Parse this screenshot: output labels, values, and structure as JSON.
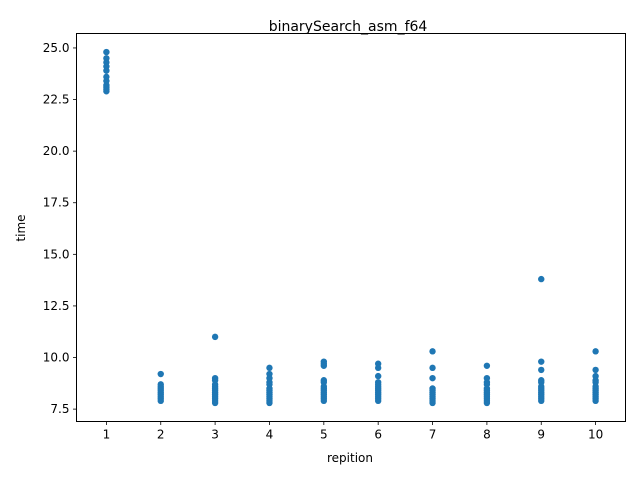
{
  "chart_data": {
    "type": "scatter",
    "title": "binarySearch_asm_f64",
    "xlabel": "repition",
    "ylabel": "time",
    "xlim": [
      0.45,
      10.55
    ],
    "ylim": [
      6.9,
      25.7
    ],
    "x_ticks": [
      1,
      2,
      3,
      4,
      5,
      6,
      7,
      8,
      9,
      10
    ],
    "y_ticks": [
      7.5,
      10.0,
      12.5,
      15.0,
      17.5,
      20.0,
      22.5,
      25.0
    ],
    "y_tick_labels": [
      "7.5",
      "10.0",
      "12.5",
      "15.0",
      "17.5",
      "20.0",
      "22.5",
      "25.0"
    ],
    "grid": false,
    "marker_color": "#1f77b4",
    "points": [
      {
        "x": 1,
        "ys": [
          24.8,
          24.5,
          24.3,
          24.1,
          23.9,
          23.6,
          23.4,
          23.2,
          23.1,
          23.0,
          22.9
        ]
      },
      {
        "x": 2,
        "ys": [
          9.2,
          8.7,
          8.6,
          8.5,
          8.4,
          8.3,
          8.2,
          8.1,
          8.0,
          7.9
        ]
      },
      {
        "x": 3,
        "ys": [
          11.0,
          9.0,
          8.9,
          8.7,
          8.6,
          8.5,
          8.4,
          8.3,
          8.2,
          8.1,
          8.0,
          7.9,
          7.8
        ]
      },
      {
        "x": 4,
        "ys": [
          9.5,
          9.2,
          9.0,
          8.8,
          8.7,
          8.5,
          8.4,
          8.3,
          8.2,
          8.1,
          8.0,
          7.9,
          7.8
        ]
      },
      {
        "x": 5,
        "ys": [
          9.8,
          9.7,
          9.6,
          8.9,
          8.8,
          8.6,
          8.5,
          8.4,
          8.3,
          8.2,
          8.1,
          8.0,
          7.9
        ]
      },
      {
        "x": 6,
        "ys": [
          9.7,
          9.5,
          9.1,
          8.8,
          8.7,
          8.6,
          8.5,
          8.4,
          8.3,
          8.2,
          8.1,
          8.0,
          7.9
        ]
      },
      {
        "x": 7,
        "ys": [
          10.3,
          9.5,
          9.0,
          8.5,
          8.4,
          8.3,
          8.2,
          8.1,
          8.0,
          7.9,
          7.8
        ]
      },
      {
        "x": 8,
        "ys": [
          9.6,
          9.0,
          8.8,
          8.7,
          8.5,
          8.4,
          8.3,
          8.2,
          8.1,
          8.0,
          7.9,
          7.8
        ]
      },
      {
        "x": 9,
        "ys": [
          13.8,
          9.8,
          9.4,
          8.9,
          8.8,
          8.6,
          8.5,
          8.4,
          8.3,
          8.2,
          8.1,
          8.0,
          7.9
        ]
      },
      {
        "x": 10,
        "ys": [
          10.3,
          9.4,
          9.1,
          8.9,
          8.8,
          8.6,
          8.5,
          8.4,
          8.3,
          8.2,
          8.1,
          8.0,
          7.9
        ]
      }
    ]
  }
}
